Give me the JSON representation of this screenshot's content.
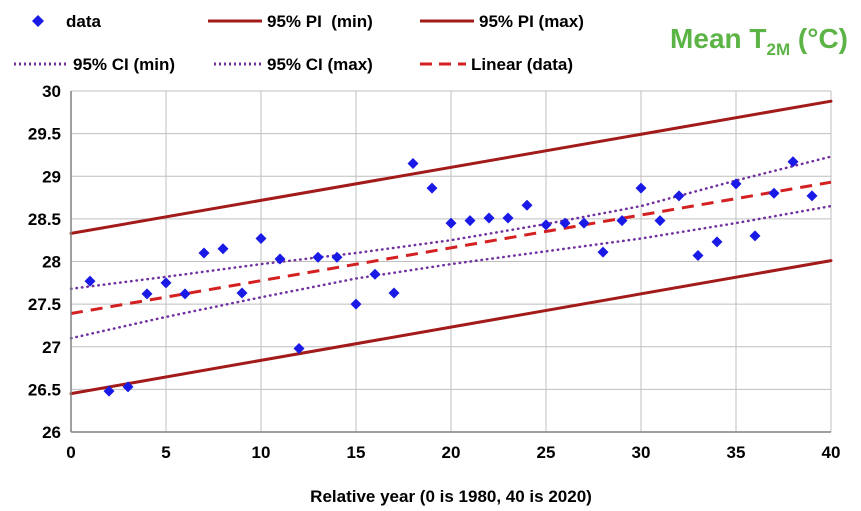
{
  "chart_data": {
    "type": "scatter",
    "title": {
      "prefix": "Mean T",
      "subscript": "2M",
      "suffix": " (°C)",
      "color": "#5cb446"
    },
    "xlabel": "Relative year (0 is 1980, 40 is 2020)",
    "ylabel": "",
    "xlim": [
      0,
      40
    ],
    "ylim": [
      26,
      30
    ],
    "x_ticks": [
      "0",
      "5",
      "10",
      "15",
      "20",
      "25",
      "30",
      "35",
      "40"
    ],
    "y_ticks": [
      "26",
      "26.5",
      "27",
      "27.5",
      "28",
      "28.5",
      "29",
      "29.5",
      "30"
    ],
    "grid": true,
    "legend_position": "top",
    "series": [
      {
        "name": "data",
        "kind": "markers",
        "marker": "diamond",
        "color": "#1a1ae6",
        "points": [
          [
            1,
            27.77
          ],
          [
            2,
            26.48
          ],
          [
            3,
            26.53
          ],
          [
            4,
            27.62
          ],
          [
            5,
            27.75
          ],
          [
            6,
            27.62
          ],
          [
            7,
            28.1
          ],
          [
            8,
            28.15
          ],
          [
            9,
            27.63
          ],
          [
            10,
            28.27
          ],
          [
            11,
            28.03
          ],
          [
            12,
            26.98
          ],
          [
            13,
            28.05
          ],
          [
            14,
            28.05
          ],
          [
            15,
            27.5
          ],
          [
            16,
            27.85
          ],
          [
            17,
            27.63
          ],
          [
            18,
            29.15
          ],
          [
            19,
            28.86
          ],
          [
            20,
            28.45
          ],
          [
            21,
            28.48
          ],
          [
            22,
            28.51
          ],
          [
            23,
            28.51
          ],
          [
            24,
            28.66
          ],
          [
            25,
            28.43
          ],
          [
            26,
            28.45
          ],
          [
            27,
            28.45
          ],
          [
            28,
            28.11
          ],
          [
            29,
            28.48
          ],
          [
            30,
            28.86
          ],
          [
            31,
            28.48
          ],
          [
            32,
            28.77
          ],
          [
            33,
            28.07
          ],
          [
            34,
            28.23
          ],
          [
            35,
            28.91
          ],
          [
            36,
            28.3
          ],
          [
            37,
            28.8
          ],
          [
            38,
            29.17
          ],
          [
            39,
            28.77
          ]
        ]
      },
      {
        "name": "95% PI  (min)",
        "kind": "line",
        "style": "solid",
        "color": "#a31a1a",
        "x": [
          0,
          40
        ],
        "y": [
          26.45,
          28.01
        ]
      },
      {
        "name": "95% PI (max)",
        "kind": "line",
        "style": "solid",
        "color": "#a31a1a",
        "x": [
          0,
          40
        ],
        "y": [
          28.33,
          29.88
        ]
      },
      {
        "name": "95% CI (min)",
        "kind": "curve",
        "style": "dotted",
        "color": "#7030a0",
        "x": [
          0,
          5,
          10,
          15,
          20,
          25,
          30,
          35,
          40
        ],
        "y": [
          27.1,
          27.35,
          27.58,
          27.8,
          27.97,
          28.12,
          28.27,
          28.45,
          28.65
        ]
      },
      {
        "name": "95% CI (max)",
        "kind": "curve",
        "style": "dotted",
        "color": "#7030a0",
        "x": [
          0,
          5,
          10,
          15,
          20,
          25,
          30,
          35,
          40
        ],
        "y": [
          27.68,
          27.82,
          27.97,
          28.1,
          28.25,
          28.44,
          28.65,
          28.95,
          29.23
        ]
      },
      {
        "name": "Linear (data)",
        "kind": "line",
        "style": "dashed",
        "color": "#d42020",
        "x": [
          0,
          40
        ],
        "y": [
          27.39,
          28.93
        ]
      }
    ]
  }
}
